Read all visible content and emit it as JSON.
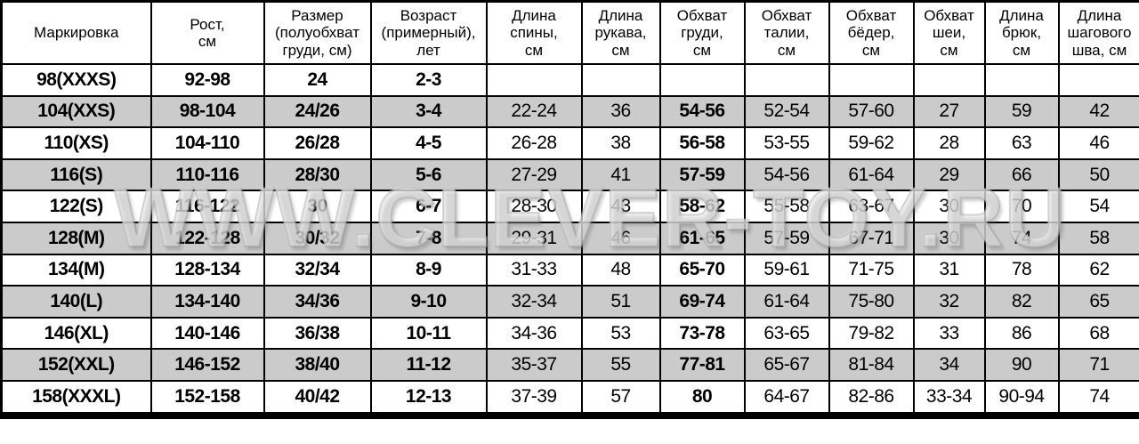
{
  "table": {
    "headers": [
      "Маркировка",
      "Рост,\nсм",
      "Размер\n(полуобхват\nгруди, см)",
      "Возраст\n(примерный),\nлет",
      "Длина\nспины,\nсм",
      "Длина\nрукава,\nсм",
      "Обхват\nгруди,\nсм",
      "Обхват\nталии,\nсм",
      "Обхват\nбёдер,\nсм",
      "Обхват\nшеи,\nсм",
      "Длина\nбрюк,\nсм",
      "Длина\nшагового\nшва, см"
    ],
    "bold_columns": [
      0,
      1,
      2,
      3,
      6
    ],
    "rows": [
      [
        "98(XXXS)",
        "92-98",
        "24",
        "2-3",
        "",
        "",
        "",
        "",
        "",
        "",
        "",
        ""
      ],
      [
        "104(XXS)",
        "98-104",
        "24/26",
        "3-4",
        "22-24",
        "36",
        "54-56",
        "52-54",
        "57-60",
        "27",
        "59",
        "42"
      ],
      [
        "110(XS)",
        "104-110",
        "26/28",
        "4-5",
        "26-28",
        "38",
        "56-58",
        "53-55",
        "59-62",
        "28",
        "63",
        "46"
      ],
      [
        "116(S)",
        "110-116",
        "28/30",
        "5-6",
        "27-29",
        "41",
        "57-59",
        "54-56",
        "61-64",
        "29",
        "66",
        "50"
      ],
      [
        "122(S)",
        "116-122",
        "30",
        "6-7",
        "28-30",
        "43",
        "58-62",
        "55-58",
        "63-67",
        "30",
        "70",
        "54"
      ],
      [
        "128(M)",
        "122-128",
        "30/32",
        "7-8",
        "29-31",
        "46",
        "61-65",
        "57-59",
        "67-71",
        "30",
        "74",
        "58"
      ],
      [
        "134(M)",
        "128-134",
        "32/34",
        "8-9",
        "31-33",
        "48",
        "65-70",
        "59-61",
        "71-75",
        "31",
        "78",
        "62"
      ],
      [
        "140(L)",
        "134-140",
        "34/36",
        "9-10",
        "32-34",
        "51",
        "69-74",
        "61-64",
        "75-80",
        "32",
        "82",
        "65"
      ],
      [
        "146(XL)",
        "140-146",
        "36/38",
        "10-11",
        "34-36",
        "53",
        "73-78",
        "63-65",
        "79-82",
        "33",
        "86",
        "68"
      ],
      [
        "152(XXL)",
        "146-152",
        "38/40",
        "11-12",
        "35-37",
        "55",
        "77-81",
        "65-67",
        "81-84",
        "34",
        "90",
        "71"
      ],
      [
        "158(XXXL)",
        "152-158",
        "40/42",
        "12-13",
        "37-39",
        "57",
        "80",
        "64-67",
        "82-86",
        "33-34",
        "90-94",
        "74"
      ]
    ]
  },
  "watermark": {
    "text": "WWW.CLEVER-TOY.RU"
  },
  "colors": {
    "alt_row_background": "#cbcbcb",
    "row_background": "#ffffff",
    "border": "#000000",
    "watermark_gray": "#dedede"
  }
}
